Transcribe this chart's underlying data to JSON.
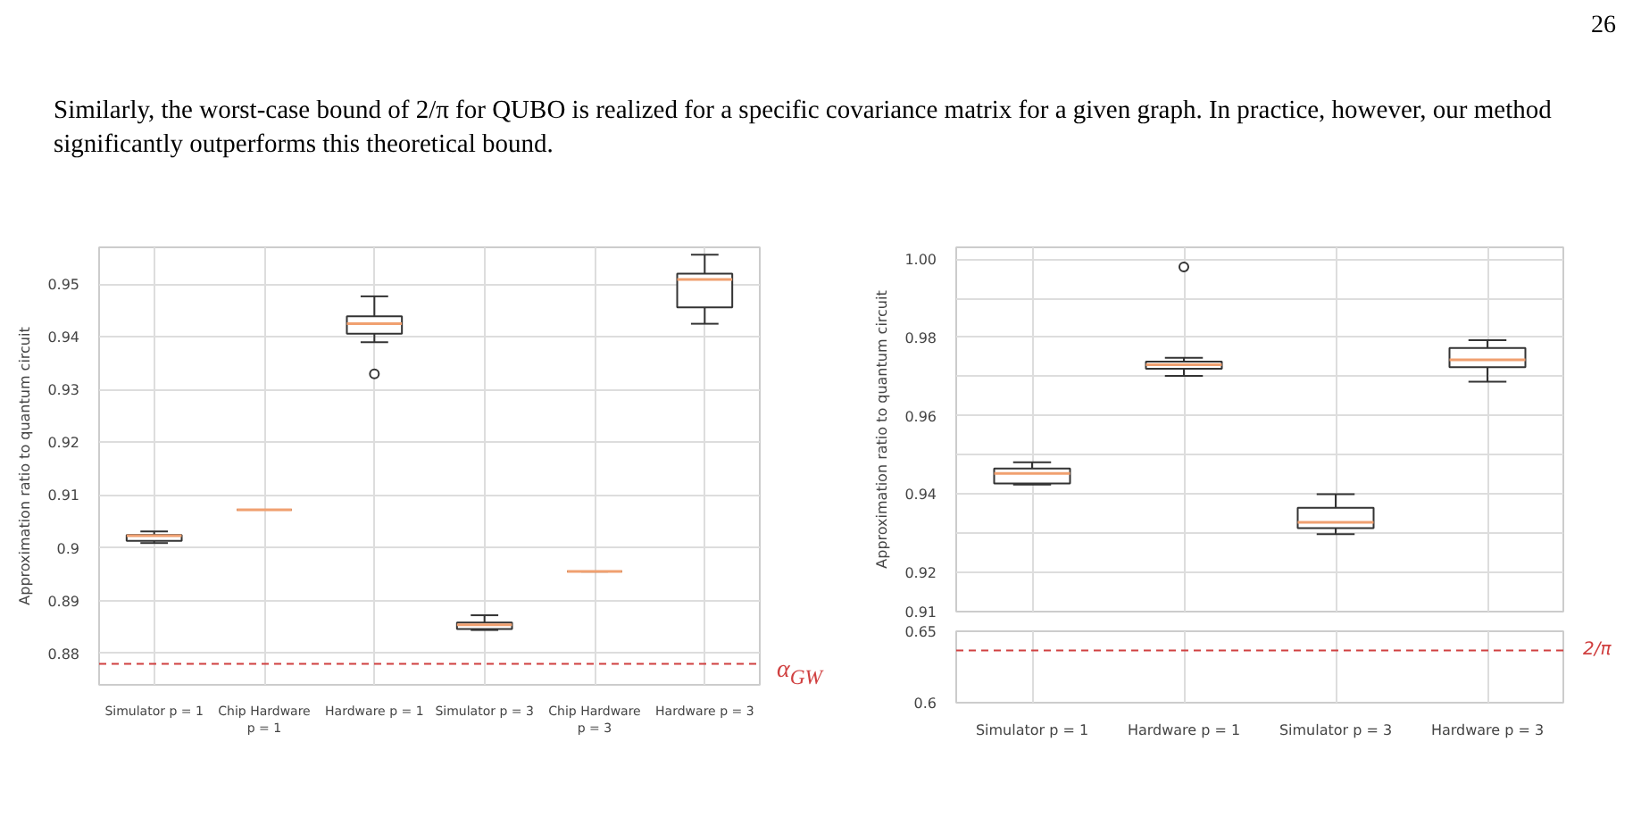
{
  "chart_data": [
    {
      "type": "other",
      "annotations": [
        "26",
        "Similarly, the worst-case bound of 2/π for QUBO is realized for a specific covariance matrix for a given graph. In practice, however, our method significantly outperforms this theoretical bound."
      ]
    },
    {
      "type": "box",
      "ylabel": "Approximation ratio to quantum circuit",
      "categories": [
        "Simulator p = 1",
        "Chip Hardware\np = 1",
        "Hardware p = 1",
        "Simulator p = 3",
        "Chip Hardware\np = 3",
        "Hardware p = 3"
      ],
      "boxes": [
        {
          "low": 0.9009,
          "q1": 0.9013,
          "median": 0.9023,
          "q3": 0.9024,
          "high": 0.9031
        },
        {
          "low": 0.9072,
          "q1": 0.9072,
          "median": 0.9072,
          "q3": 0.9072,
          "high": 0.9072
        },
        {
          "low": 0.939,
          "q1": 0.9406,
          "median": 0.9425,
          "q3": 0.9439,
          "high": 0.9477,
          "outliers": [
            0.933
          ]
        },
        {
          "low": 0.8844,
          "q1": 0.8846,
          "median": 0.8854,
          "q3": 0.8858,
          "high": 0.8872
        },
        {
          "low": 0.8955,
          "q1": 0.8955,
          "median": 0.8955,
          "q3": 0.8955,
          "high": 0.8955
        },
        {
          "low": 0.9425,
          "q1": 0.9456,
          "median": 0.9509,
          "q3": 0.952,
          "high": 0.9556
        }
      ],
      "ylim": [
        0.874,
        0.957
      ],
      "yticks": [
        0.88,
        0.89,
        0.9,
        0.91,
        0.92,
        0.93,
        0.94,
        0.95
      ],
      "grid": true,
      "ref_lines": [
        {
          "axis": "y",
          "value": 0.878,
          "label": "α$_{GW}$",
          "color": "#d04040",
          "line_style": "dashed"
        }
      ]
    },
    {
      "type": "box",
      "ylabel": "Approximation ratio to quantum circuit",
      "categories": [
        null,
        null,
        null,
        null
      ],
      "boxes": [
        {
          "low": 0.9424,
          "q1": 0.9427,
          "median": 0.9453,
          "q3": 0.9465,
          "high": 0.9481
        },
        {
          "low": 0.9702,
          "q1": 0.972,
          "median": 0.973,
          "q3": 0.9738,
          "high": 0.9748,
          "outliers": [
            0.998
          ]
        },
        {
          "low": 0.9298,
          "q1": 0.9313,
          "median": 0.9328,
          "q3": 0.9365,
          "high": 0.94
        },
        {
          "low": 0.9687,
          "q1": 0.9724,
          "median": 0.9743,
          "q3": 0.9773,
          "high": 0.9793
        }
      ],
      "ylim": [
        0.91,
        1.003
      ],
      "yticks": [
        0.91,
        0.92,
        {
          "value": 0.93,
          "label": null
        },
        0.94,
        {
          "value": 0.95,
          "label": null
        },
        0.96,
        {
          "value": 0.97,
          "label": null
        },
        0.98,
        {
          "value": 0.99,
          "label": null
        },
        "1.00"
      ],
      "grid": true
    },
    {
      "type": "box",
      "categories": [
        "Simulator p = 1",
        "Hardware p = 1",
        "Simulator p = 3",
        "Hardware p = 3"
      ],
      "ylim": [
        0.6,
        0.65
      ],
      "yticks": [
        0.6,
        0.65
      ],
      "grid": true,
      "ref_lines": [
        {
          "axis": "y",
          "value": 0.6366,
          "label": "2/π",
          "color": "#d04040",
          "line_style": "dashed"
        }
      ]
    }
  ]
}
